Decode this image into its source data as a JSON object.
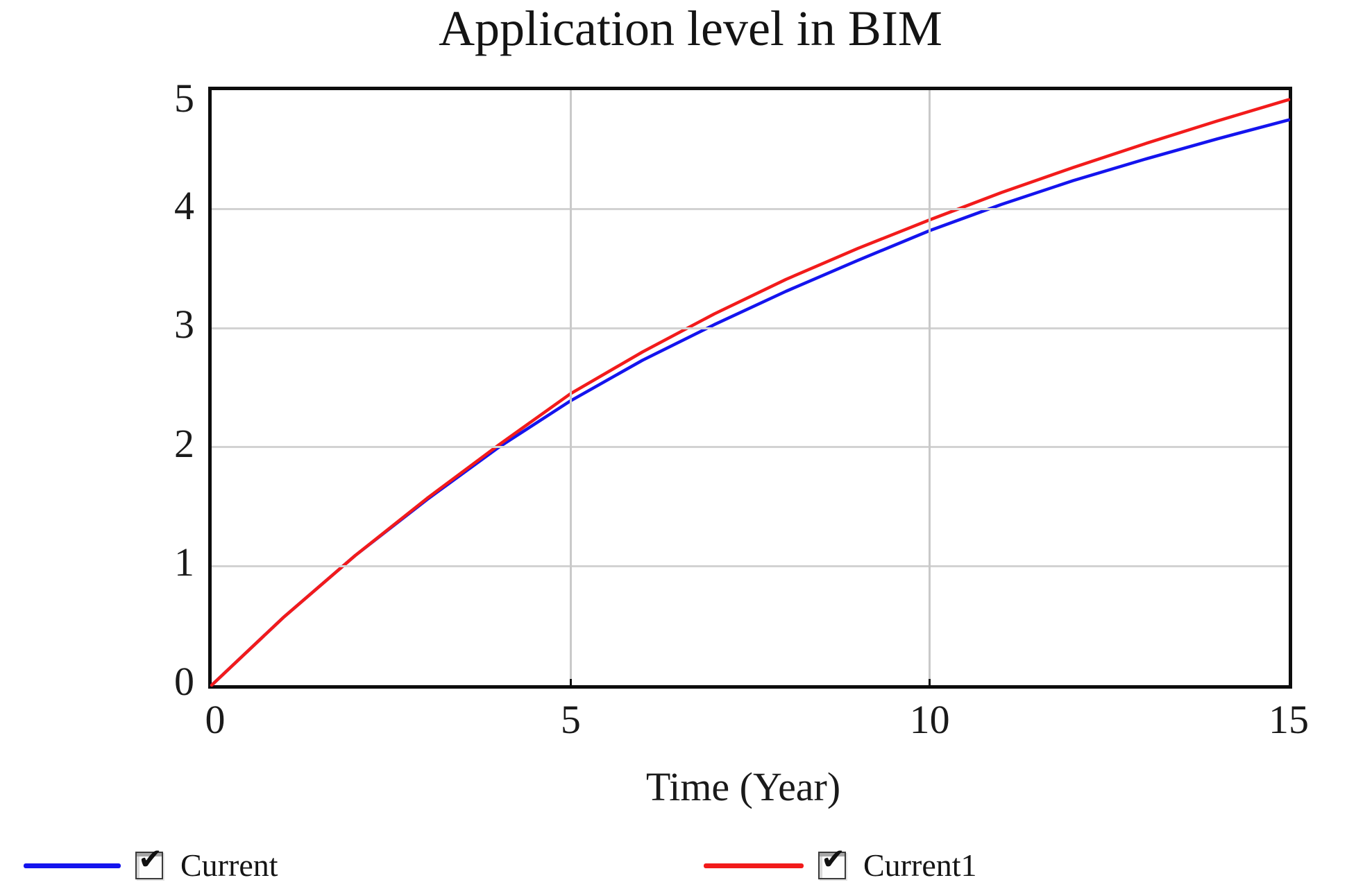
{
  "title": "Application level in BIM",
  "colors": {
    "axis": "#0d0d0d",
    "grid": "#d2d2d2",
    "text": "#1a1a1a",
    "series_blue": "#1414ee",
    "series_red": "#f21b1b"
  },
  "legend": {
    "checkmark_glyph": "✔",
    "items": [
      {
        "label": "Current",
        "color": "#1414ee",
        "checked": true
      },
      {
        "label": "Current1",
        "color": "#f21b1b",
        "checked": true
      }
    ]
  },
  "chart_data": {
    "type": "line",
    "title": "Application level in BIM",
    "xlabel": "Time (Year)",
    "ylabel": "",
    "xlim": [
      0,
      15
    ],
    "ylim": [
      0,
      5
    ],
    "x_ticks": [
      0,
      5,
      10,
      15
    ],
    "y_ticks": [
      0,
      1,
      2,
      3,
      4,
      5
    ],
    "grid": true,
    "legend_position": "bottom",
    "x": [
      0,
      1,
      2,
      3,
      4,
      5,
      6,
      7,
      8,
      9,
      10,
      11,
      12,
      13,
      14,
      15
    ],
    "series": [
      {
        "name": "Current",
        "color": "#1414ee",
        "values": [
          0,
          0.57,
          1.09,
          1.56,
          2.0,
          2.39,
          2.73,
          3.03,
          3.31,
          3.57,
          3.82,
          4.04,
          4.24,
          4.42,
          4.59,
          4.75
        ]
      },
      {
        "name": "Current1",
        "color": "#f21b1b",
        "values": [
          0,
          0.57,
          1.09,
          1.57,
          2.02,
          2.45,
          2.8,
          3.12,
          3.41,
          3.67,
          3.91,
          4.14,
          4.35,
          4.55,
          4.74,
          4.92
        ]
      }
    ]
  }
}
